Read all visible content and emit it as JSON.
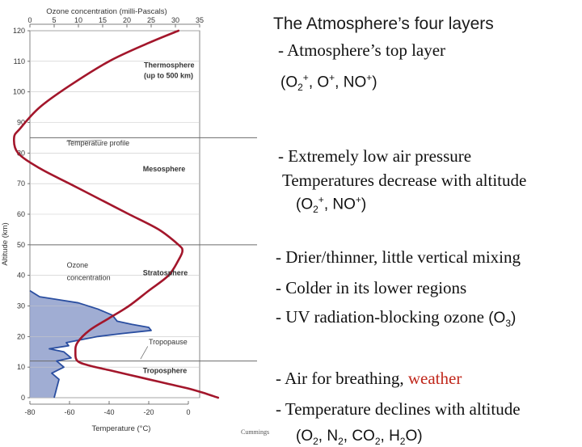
{
  "chart_data": {
    "type": "line",
    "top_axis": {
      "label": "Ozone concentration (milli-Pascals)",
      "ticks": [
        0,
        5,
        10,
        15,
        20,
        25,
        30,
        35
      ],
      "range": [
        0,
        35
      ]
    },
    "x_axis": {
      "label": "Temperature (°C)",
      "ticks": [
        -80,
        -60,
        -40,
        -20,
        0
      ],
      "range": [
        -80,
        0
      ]
    },
    "y_axis": {
      "label": "Altitude (km)",
      "ticks": [
        0,
        10,
        20,
        30,
        40,
        50,
        60,
        70,
        80,
        90,
        100,
        110,
        120
      ],
      "range": [
        0,
        120
      ]
    },
    "grid": "horizontal",
    "layer_boundaries_km": [
      12,
      50,
      85
    ],
    "series": [
      {
        "name": "Temperature profile",
        "color": "#a3162b",
        "x": [
          15,
          8,
          0,
          -10,
          -20,
          -30,
          -40,
          -50,
          -56,
          -57,
          -56,
          -50,
          -40,
          -30,
          -20,
          -10,
          -5,
          -3,
          -5,
          -15,
          -30,
          -45,
          -60,
          -75,
          -86,
          -88,
          -85,
          -75,
          -60,
          -40,
          -20,
          -5
        ],
        "y": [
          0,
          1.5,
          3,
          4.5,
          6,
          7.5,
          9,
          10.5,
          12,
          15,
          18,
          22,
          26,
          30,
          35,
          40,
          45,
          48,
          50,
          55,
          60,
          65,
          70,
          75,
          80,
          85,
          88,
          95,
          102,
          110,
          116,
          120
        ]
      },
      {
        "name": "Ozone concentration",
        "color": "#2a4ea0",
        "x": [
          5,
          5.5,
          6,
          4.5,
          7,
          5.5,
          8.5,
          7,
          4,
          8,
          7.5,
          14,
          19,
          25,
          24.5,
          21,
          18,
          17,
          14,
          10,
          6,
          2,
          0
        ],
        "y": [
          0,
          3,
          6,
          8,
          10,
          12,
          13,
          15,
          16,
          17,
          18,
          20,
          21,
          22,
          23,
          24,
          25,
          27,
          29,
          31,
          32,
          33,
          35
        ]
      }
    ],
    "annotations": [
      {
        "text": "Thermosphere",
        "x_ozone": 23.5,
        "y": 108
      },
      {
        "text": "(up to 500 km)",
        "x_ozone": 23.5,
        "y": 104.5
      },
      {
        "text": "Temperature profile",
        "x_ozone": 7.6,
        "y": 82.5
      },
      {
        "text": "Mesosphere",
        "x_ozone": 23.3,
        "y": 74
      },
      {
        "text": "Ozone",
        "x_ozone": 7.6,
        "y": 42.5
      },
      {
        "text": "concentration",
        "x_ozone": 7.6,
        "y": 38.5
      },
      {
        "text": "Stratosphere",
        "x_ozone": 23.3,
        "y": 40
      },
      {
        "text": "Tropopause",
        "x_ozone": 24.5,
        "y": 17.5
      },
      {
        "text": "Troposphere",
        "x_ozone": 23.3,
        "y": 8
      }
    ]
  },
  "credit": "Cummings",
  "text_panel": {
    "title": "The Atmosphere’s four layers",
    "thermo_line1": "- Atmosphere’s top layer",
    "thermo_ions": {
      "open": "(O",
      "sub2": "2",
      "plus1": "+",
      "mid1": ", O",
      "plus2": "+",
      "mid2": ", NO",
      "plus3": "+",
      "close": ")"
    },
    "meso_line1": "- Extremely low air pressure",
    "meso_line2": "Temperatures decrease with altitude",
    "meso_ions": {
      "open": "(O",
      "sub2": "2",
      "plus1": "+",
      "mid": ", NO",
      "plus2": "+",
      "close": ")"
    },
    "strato_1": "-  Drier/thinner, little vertical mixing",
    "strato_2": "-  Colder in its lower regions",
    "strato_3_pre": "-  UV radiation-blocking ozone ",
    "strato_3_chem": {
      "open": "(O",
      "sub": "3",
      "close": ")"
    },
    "tropo_1_pre": "-  Air for breathing, ",
    "tropo_1_weather": "weather",
    "tropo_2": "-  Temperature declines with altitude",
    "tropo_3": {
      "open": "(O",
      "sub1": "2",
      "mid1": ", N",
      "sub2": "2",
      "mid2": ", CO",
      "sub3": "2",
      "mid3": ", H",
      "sub4": "2",
      "mid4": "O",
      "close": ")"
    }
  }
}
